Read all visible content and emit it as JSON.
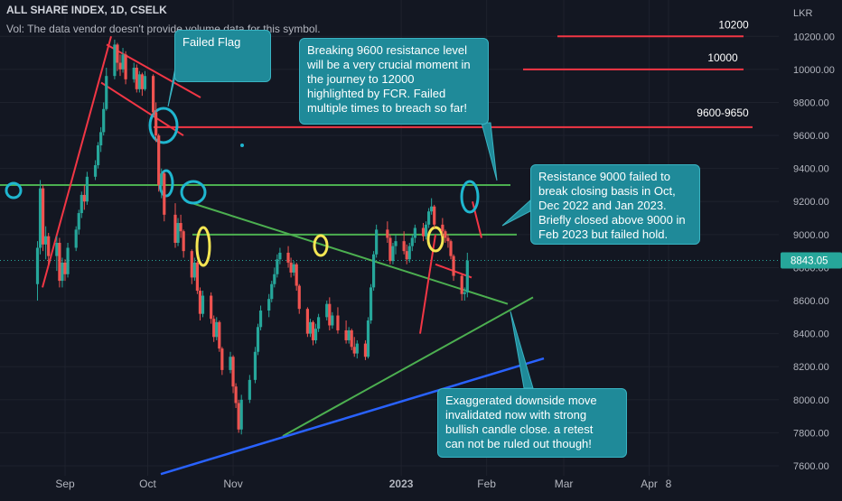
{
  "header": {
    "title": "ALL SHARE INDEX, 1D, CSELK",
    "volume_note": "Vol: The data vendor doesn't provide volume data for this symbol."
  },
  "chart_data": {
    "type": "candlestick",
    "currency_label": "LKR",
    "last_price_label": "8843.05",
    "ylim": [
      7540,
      10420
    ],
    "y_ticks": [
      "10200.00",
      "10000.00",
      "9800.00",
      "9600.00",
      "9400.00",
      "9200.00",
      "9000.00",
      "8800.00",
      "8600.00",
      "8400.00",
      "8200.00",
      "8000.00",
      "7800.00",
      "7600.00"
    ],
    "x_ticks": [
      "Sep",
      "Oct",
      "Nov",
      "2023",
      "Feb",
      "Mar",
      "Apr",
      "8"
    ],
    "candles": [
      {
        "d": "2022-08-22",
        "o": 8700,
        "h": 8960,
        "l": 8600,
        "c": 8920
      },
      {
        "d": "2022-08-23",
        "o": 8920,
        "h": 9330,
        "l": 8880,
        "c": 9280
      },
      {
        "d": "2022-08-24",
        "o": 9280,
        "h": 9300,
        "l": 8900,
        "c": 8940
      },
      {
        "d": "2022-08-25",
        "o": 8940,
        "h": 9050,
        "l": 8850,
        "c": 8990
      },
      {
        "d": "2022-08-26",
        "o": 8990,
        "h": 9010,
        "l": 8820,
        "c": 8870
      },
      {
        "d": "2022-08-29",
        "o": 8870,
        "h": 8990,
        "l": 8780,
        "c": 8950
      },
      {
        "d": "2022-08-30",
        "o": 8950,
        "h": 8980,
        "l": 8680,
        "c": 8720
      },
      {
        "d": "2022-08-31",
        "o": 8720,
        "h": 8860,
        "l": 8680,
        "c": 8830
      },
      {
        "d": "2022-09-01",
        "o": 8830,
        "h": 8850,
        "l": 8720,
        "c": 8760
      },
      {
        "d": "2022-09-02",
        "o": 8760,
        "h": 8950,
        "l": 8740,
        "c": 8920
      },
      {
        "d": "2022-09-05",
        "o": 8920,
        "h": 9050,
        "l": 8900,
        "c": 9030
      },
      {
        "d": "2022-09-06",
        "o": 9030,
        "h": 9150,
        "l": 9000,
        "c": 9130
      },
      {
        "d": "2022-09-07",
        "o": 9130,
        "h": 9260,
        "l": 9100,
        "c": 9240
      },
      {
        "d": "2022-09-08",
        "o": 9240,
        "h": 9300,
        "l": 9150,
        "c": 9200
      },
      {
        "d": "2022-09-09",
        "o": 9200,
        "h": 9380,
        "l": 9180,
        "c": 9350
      },
      {
        "d": "2022-09-12",
        "o": 9350,
        "h": 9450,
        "l": 9330,
        "c": 9420
      },
      {
        "d": "2022-09-13",
        "o": 9420,
        "h": 9560,
        "l": 9400,
        "c": 9540
      },
      {
        "d": "2022-09-14",
        "o": 9540,
        "h": 9650,
        "l": 9500,
        "c": 9620
      },
      {
        "d": "2022-09-15",
        "o": 9620,
        "h": 9800,
        "l": 9600,
        "c": 9760
      },
      {
        "d": "2022-09-16",
        "o": 9760,
        "h": 10010,
        "l": 9750,
        "c": 9960
      },
      {
        "d": "2022-09-19",
        "o": 9960,
        "h": 10180,
        "l": 9940,
        "c": 10150
      },
      {
        "d": "2022-09-20",
        "o": 10150,
        "h": 10160,
        "l": 9990,
        "c": 10040
      },
      {
        "d": "2022-09-21",
        "o": 10040,
        "h": 10090,
        "l": 9960,
        "c": 10000
      },
      {
        "d": "2022-09-22",
        "o": 10000,
        "h": 10130,
        "l": 9980,
        "c": 10090
      },
      {
        "d": "2022-09-23",
        "o": 10090,
        "h": 10110,
        "l": 9910,
        "c": 9940
      },
      {
        "d": "2022-09-26",
        "o": 9940,
        "h": 10040,
        "l": 9920,
        "c": 10010
      },
      {
        "d": "2022-09-27",
        "o": 10010,
        "h": 10030,
        "l": 9860,
        "c": 9880
      },
      {
        "d": "2022-09-28",
        "o": 9880,
        "h": 9990,
        "l": 9860,
        "c": 9970
      },
      {
        "d": "2022-09-29",
        "o": 9970,
        "h": 9980,
        "l": 9840,
        "c": 9880
      },
      {
        "d": "2022-09-30",
        "o": 9880,
        "h": 9990,
        "l": 9870,
        "c": 9960
      },
      {
        "d": "2022-10-03",
        "o": 9960,
        "h": 9970,
        "l": 9720,
        "c": 9740
      },
      {
        "d": "2022-10-04",
        "o": 9740,
        "h": 9800,
        "l": 9560,
        "c": 9600
      },
      {
        "d": "2022-10-05",
        "o": 9600,
        "h": 9610,
        "l": 9260,
        "c": 9300
      },
      {
        "d": "2022-10-06",
        "o": 9300,
        "h": 9400,
        "l": 9220,
        "c": 9370
      },
      {
        "d": "2022-10-07",
        "o": 9370,
        "h": 9380,
        "l": 9080,
        "c": 9120
      },
      {
        "d": "2022-10-11",
        "o": 9120,
        "h": 9190,
        "l": 8920,
        "c": 8950
      },
      {
        "d": "2022-10-12",
        "o": 8950,
        "h": 9100,
        "l": 8930,
        "c": 9070
      },
      {
        "d": "2022-10-13",
        "o": 9070,
        "h": 9120,
        "l": 8980,
        "c": 9020
      },
      {
        "d": "2022-10-14",
        "o": 9020,
        "h": 9030,
        "l": 8860,
        "c": 8900
      },
      {
        "d": "2022-10-17",
        "o": 8900,
        "h": 8910,
        "l": 8700,
        "c": 8740
      },
      {
        "d": "2022-10-18",
        "o": 8740,
        "h": 8860,
        "l": 8720,
        "c": 8830
      },
      {
        "d": "2022-10-19",
        "o": 8830,
        "h": 8840,
        "l": 8640,
        "c": 8660
      },
      {
        "d": "2022-10-20",
        "o": 8660,
        "h": 8680,
        "l": 8480,
        "c": 8520
      },
      {
        "d": "2022-10-21",
        "o": 8520,
        "h": 8660,
        "l": 8500,
        "c": 8630
      },
      {
        "d": "2022-10-24",
        "o": 8630,
        "h": 8650,
        "l": 8460,
        "c": 8490
      },
      {
        "d": "2022-10-25",
        "o": 8490,
        "h": 8510,
        "l": 8350,
        "c": 8380
      },
      {
        "d": "2022-10-26",
        "o": 8380,
        "h": 8500,
        "l": 8360,
        "c": 8470
      },
      {
        "d": "2022-10-27",
        "o": 8470,
        "h": 8480,
        "l": 8290,
        "c": 8310
      },
      {
        "d": "2022-10-28",
        "o": 8310,
        "h": 8320,
        "l": 8150,
        "c": 8180
      },
      {
        "d": "2022-10-31",
        "o": 8180,
        "h": 8290,
        "l": 8160,
        "c": 8260
      },
      {
        "d": "2022-11-01",
        "o": 8260,
        "h": 8270,
        "l": 8040,
        "c": 8080
      },
      {
        "d": "2022-11-02",
        "o": 8080,
        "h": 8100,
        "l": 7950,
        "c": 7980
      },
      {
        "d": "2022-11-03",
        "o": 7980,
        "h": 8000,
        "l": 7800,
        "c": 7820
      },
      {
        "d": "2022-11-04",
        "o": 7820,
        "h": 8030,
        "l": 7790,
        "c": 8000
      },
      {
        "d": "2022-11-07",
        "o": 8000,
        "h": 8150,
        "l": 7980,
        "c": 8120
      },
      {
        "d": "2022-11-09",
        "o": 8120,
        "h": 8320,
        "l": 8100,
        "c": 8290
      },
      {
        "d": "2022-11-10",
        "o": 8290,
        "h": 8460,
        "l": 8270,
        "c": 8440
      },
      {
        "d": "2022-11-11",
        "o": 8440,
        "h": 8570,
        "l": 8420,
        "c": 8540
      },
      {
        "d": "2022-11-14",
        "o": 8540,
        "h": 8640,
        "l": 8500,
        "c": 8610
      },
      {
        "d": "2022-11-15",
        "o": 8610,
        "h": 8720,
        "l": 8590,
        "c": 8700
      },
      {
        "d": "2022-11-16",
        "o": 8700,
        "h": 8800,
        "l": 8680,
        "c": 8760
      },
      {
        "d": "2022-11-17",
        "o": 8760,
        "h": 8880,
        "l": 8740,
        "c": 8850
      },
      {
        "d": "2022-11-18",
        "o": 8850,
        "h": 8920,
        "l": 8820,
        "c": 8890
      },
      {
        "d": "2022-11-21",
        "o": 8890,
        "h": 8930,
        "l": 8800,
        "c": 8830
      },
      {
        "d": "2022-11-22",
        "o": 8830,
        "h": 8860,
        "l": 8740,
        "c": 8770
      },
      {
        "d": "2022-11-23",
        "o": 8770,
        "h": 8840,
        "l": 8750,
        "c": 8820
      },
      {
        "d": "2022-11-24",
        "o": 8820,
        "h": 8830,
        "l": 8660,
        "c": 8690
      },
      {
        "d": "2022-11-25",
        "o": 8690,
        "h": 8700,
        "l": 8520,
        "c": 8550
      },
      {
        "d": "2022-11-28",
        "o": 8550,
        "h": 8560,
        "l": 8380,
        "c": 8400
      },
      {
        "d": "2022-11-29",
        "o": 8400,
        "h": 8490,
        "l": 8380,
        "c": 8470
      },
      {
        "d": "2022-11-30",
        "o": 8470,
        "h": 8480,
        "l": 8330,
        "c": 8360
      },
      {
        "d": "2022-12-01",
        "o": 8360,
        "h": 8460,
        "l": 8340,
        "c": 8430
      },
      {
        "d": "2022-12-02",
        "o": 8430,
        "h": 8520,
        "l": 8410,
        "c": 8500
      },
      {
        "d": "2022-12-05",
        "o": 8500,
        "h": 8600,
        "l": 8480,
        "c": 8580
      },
      {
        "d": "2022-12-06",
        "o": 8580,
        "h": 8620,
        "l": 8420,
        "c": 8450
      },
      {
        "d": "2022-12-07",
        "o": 8450,
        "h": 8530,
        "l": 8430,
        "c": 8510
      },
      {
        "d": "2022-12-09",
        "o": 8510,
        "h": 8560,
        "l": 8400,
        "c": 8420
      },
      {
        "d": "2022-12-12",
        "o": 8420,
        "h": 8480,
        "l": 8340,
        "c": 8360
      },
      {
        "d": "2022-12-13",
        "o": 8360,
        "h": 8440,
        "l": 8340,
        "c": 8420
      },
      {
        "d": "2022-12-14",
        "o": 8420,
        "h": 8430,
        "l": 8300,
        "c": 8320
      },
      {
        "d": "2022-12-15",
        "o": 8320,
        "h": 8380,
        "l": 8260,
        "c": 8280
      },
      {
        "d": "2022-12-16",
        "o": 8280,
        "h": 8360,
        "l": 8250,
        "c": 8340
      },
      {
        "d": "2022-12-19",
        "o": 8340,
        "h": 8360,
        "l": 8240,
        "c": 8260
      },
      {
        "d": "2022-12-20",
        "o": 8260,
        "h": 8500,
        "l": 8250,
        "c": 8480
      },
      {
        "d": "2022-12-21",
        "o": 8480,
        "h": 8700,
        "l": 8460,
        "c": 8680
      },
      {
        "d": "2022-12-22",
        "o": 8680,
        "h": 8900,
        "l": 8660,
        "c": 8880
      },
      {
        "d": "2022-12-23",
        "o": 8880,
        "h": 9060,
        "l": 8860,
        "c": 9030
      },
      {
        "d": "2022-12-27",
        "o": 9030,
        "h": 9080,
        "l": 8950,
        "c": 8980
      },
      {
        "d": "2022-12-28",
        "o": 8980,
        "h": 9000,
        "l": 8820,
        "c": 8840
      },
      {
        "d": "2022-12-29",
        "o": 8840,
        "h": 8950,
        "l": 8820,
        "c": 8930
      },
      {
        "d": "2022-12-30",
        "o": 8930,
        "h": 9000,
        "l": 8880,
        "c": 8960
      },
      {
        "d": "2023-01-02",
        "o": 8960,
        "h": 9020,
        "l": 8880,
        "c": 8900
      },
      {
        "d": "2023-01-03",
        "o": 8900,
        "h": 8940,
        "l": 8820,
        "c": 8850
      },
      {
        "d": "2023-01-04",
        "o": 8850,
        "h": 8950,
        "l": 8830,
        "c": 8930
      },
      {
        "d": "2023-01-05",
        "o": 8930,
        "h": 9000,
        "l": 8900,
        "c": 8980
      },
      {
        "d": "2023-01-06",
        "o": 8980,
        "h": 9060,
        "l": 8950,
        "c": 9040
      },
      {
        "d": "2023-01-09",
        "o": 9040,
        "h": 9070,
        "l": 8960,
        "c": 8990
      },
      {
        "d": "2023-01-10",
        "o": 8990,
        "h": 9080,
        "l": 8970,
        "c": 9060
      },
      {
        "d": "2023-01-11",
        "o": 9060,
        "h": 9160,
        "l": 9040,
        "c": 9140
      },
      {
        "d": "2023-01-12",
        "o": 9140,
        "h": 9220,
        "l": 9120,
        "c": 9170
      },
      {
        "d": "2023-01-13",
        "o": 9170,
        "h": 9180,
        "l": 9040,
        "c": 9060
      },
      {
        "d": "2023-01-16",
        "o": 9060,
        "h": 9100,
        "l": 8990,
        "c": 9020
      },
      {
        "d": "2023-01-17",
        "o": 9020,
        "h": 9030,
        "l": 8950,
        "c": 8980
      },
      {
        "d": "2023-01-18",
        "o": 8980,
        "h": 9000,
        "l": 8920,
        "c": 8960
      },
      {
        "d": "2023-01-19",
        "o": 8960,
        "h": 8970,
        "l": 8850,
        "c": 8870
      },
      {
        "d": "2023-01-20",
        "o": 8870,
        "h": 8880,
        "l": 8720,
        "c": 8750
      },
      {
        "d": "2023-01-23",
        "o": 8750,
        "h": 8760,
        "l": 8600,
        "c": 8640
      },
      {
        "d": "2023-01-24",
        "o": 8640,
        "h": 8680,
        "l": 8600,
        "c": 8650
      },
      {
        "d": "2023-01-25",
        "o": 8650,
        "h": 8890,
        "l": 8620,
        "c": 8843.05
      }
    ]
  },
  "levels": {
    "l10200": "10200",
    "l10000": "10000",
    "l9600": "9600-9650"
  },
  "notes": {
    "failed_flag": "Failed Flag",
    "n9600": [
      "Breaking 9600 resistance level",
      "will be a very crucial moment in",
      "the journey to 12000",
      "highlighted by FCR. Failed",
      "multiple times to breach so far!"
    ],
    "n9000": [
      "Resistance 9000 failed to",
      "break closing basis in Oct,",
      "Dec 2022 and Jan 2023.",
      "Briefly closed above 9000 in",
      "Feb 2023 but failed hold."
    ],
    "ndown": [
      "Exaggerated downside move",
      "invalidated now with strong",
      "bullish candle close. a retest",
      "can not be ruled out though!"
    ]
  },
  "colors": {
    "background": "#131722",
    "up": "#26a69a",
    "down": "#ef5350",
    "resistance": "#f23645",
    "support_green": "#4caf50",
    "trend_blue": "#2962ff",
    "highlight_cyan": "#1fb6cf",
    "highlight_yellow": "#f5e653",
    "callout": "#1f8a99"
  }
}
